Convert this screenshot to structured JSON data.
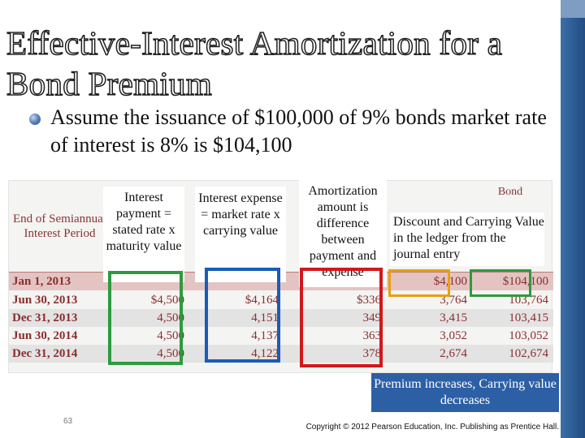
{
  "slide": {
    "title": "Effective-Interest Amortization for a Bond Premium",
    "bullet": "Assume the issuance of $100,000 of 9% bonds market rate of interest is 8% is $104,100",
    "page_number": "63",
    "copyright": "Copyright © 2012 Pearson Education, Inc. Publishing as Prentice Hall."
  },
  "table": {
    "header_period": "End of Semiannual Interest Period",
    "header_bond": "Bond",
    "rows": [
      {
        "date": "Jan 1, 2013",
        "payment": "",
        "expense": "",
        "amortization": "",
        "premium": "$4,100",
        "carrying": "$104,100"
      },
      {
        "date": "Jun 30, 2013",
        "payment": "$4,500",
        "expense": "$4,164",
        "amortization": "$336",
        "premium": "3,764",
        "carrying": "103,764"
      },
      {
        "date": "Dec 31, 2013",
        "payment": "4,500",
        "expense": "4,151",
        "amortization": "349",
        "premium": "3,415",
        "carrying": "103,415"
      },
      {
        "date": "Jun 30, 2014",
        "payment": "4,500",
        "expense": "4,137",
        "amortization": "363",
        "premium": "3,052",
        "carrying": "103,052"
      },
      {
        "date": "Dec 31, 2014",
        "payment": "4,500",
        "expense": "4,122",
        "amortization": "378",
        "premium": "2,674",
        "carrying": "102,674"
      }
    ]
  },
  "callouts": {
    "interest_payment": "Interest payment = stated rate x maturity value",
    "interest_expense": "Interest expense = market rate x carrying value",
    "amortization": "Amortization amount is difference between payment and expense",
    "discount_carrying": "Discount and Carrying Value in the ledger from the journal entry",
    "premium_note": "Premium increases, Carrying value decreases"
  },
  "colors": {
    "accent_blue": "#2d5fa5",
    "box_red": "#d0191c",
    "box_blue": "#1a5cb8",
    "box_green": "#2e9a3f",
    "box_gold": "#e8a013",
    "table_text": "#8a2e2e"
  }
}
